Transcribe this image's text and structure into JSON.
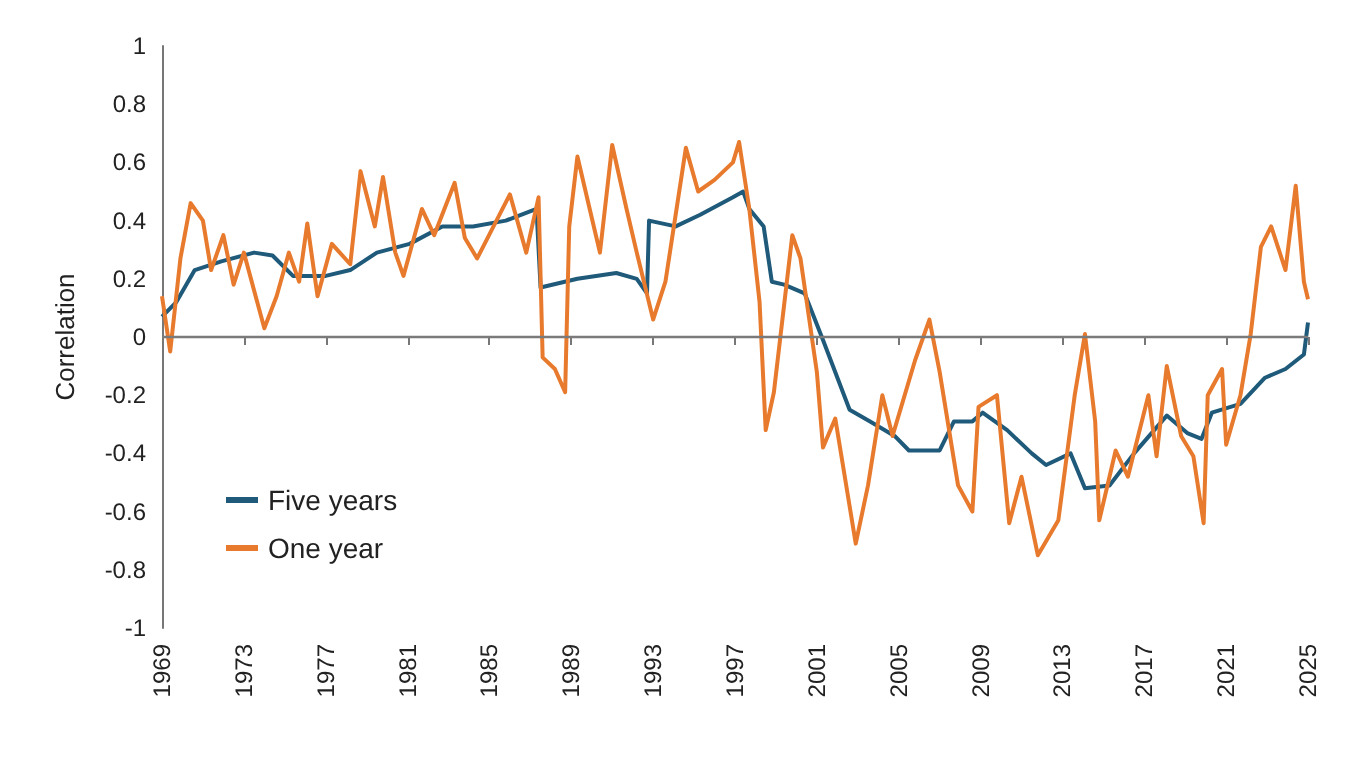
{
  "chart_data": {
    "type": "line",
    "ylabel": "Correlation",
    "xlim": [
      1969,
      2025
    ],
    "xticks": [
      1969,
      1973,
      1977,
      1981,
      1985,
      1989,
      1993,
      1997,
      2001,
      2005,
      2009,
      2013,
      2017,
      2021,
      2025
    ],
    "ylim": [
      -1,
      1
    ],
    "yticks": [
      -1,
      -0.8,
      -0.6,
      -0.4,
      -0.2,
      0,
      0.2,
      0.4,
      0.6,
      0.8,
      1
    ],
    "grid": false,
    "ref_lines": [
      {
        "axis": "y",
        "value": 0,
        "color": "#7a7a7a"
      }
    ],
    "legend": "bottom left",
    "marker": "none",
    "line_style": "solid",
    "series": [
      {
        "name": "Five years",
        "color": "#1f5a7a",
        "x": [
          1969,
          1969.7,
          1970.6,
          1971.9,
          1973.5,
          1974.4,
          1975.4,
          1977,
          1978.2,
          1979.5,
          1981.1,
          1982.7,
          1984.2,
          1985.8,
          1987.3,
          1987.5,
          1989.3,
          1991.2,
          1992.2,
          1992.7,
          1992.8,
          1994.1,
          1995.3,
          1996.9,
          1997.4,
          1997.7,
          1998.4,
          1998.8,
          1999.4,
          2000.4,
          2001.3,
          2002.6,
          2003.6,
          2004.8,
          2005.5,
          2007,
          2007.7,
          2008.6,
          2009.1,
          2010.3,
          2011.5,
          2012.2,
          2013.4,
          2014.1,
          2015.3,
          2016.5,
          2018.1,
          2019.1,
          2019.8,
          2020.3,
          2021.7,
          2022.9,
          2023.9,
          2024.8,
          2025
        ],
        "values": [
          0.07,
          0.12,
          0.23,
          0.26,
          0.29,
          0.28,
          0.21,
          0.21,
          0.23,
          0.29,
          0.32,
          0.38,
          0.38,
          0.4,
          0.44,
          0.17,
          0.2,
          0.22,
          0.2,
          0.15,
          0.4,
          0.38,
          0.42,
          0.48,
          0.5,
          0.44,
          0.38,
          0.19,
          0.18,
          0.15,
          -0.01,
          -0.25,
          -0.29,
          -0.34,
          -0.39,
          -0.39,
          -0.29,
          -0.29,
          -0.26,
          -0.32,
          -0.4,
          -0.44,
          -0.4,
          -0.52,
          -0.51,
          -0.4,
          -0.27,
          -0.33,
          -0.35,
          -0.26,
          -0.23,
          -0.14,
          -0.11,
          -0.06,
          0.05
        ]
      },
      {
        "name": "One year",
        "color": "#e87a2e",
        "x": [
          1969,
          1969.4,
          1969.9,
          1970.4,
          1971,
          1971.4,
          1972,
          1972.5,
          1973,
          1974,
          1974.6,
          1975.2,
          1975.7,
          1976.1,
          1976.6,
          1977.3,
          1978.2,
          1978.7,
          1979.4,
          1979.8,
          1980.4,
          1980.8,
          1981.7,
          1982.3,
          1983.3,
          1983.8,
          1984.4,
          1985.2,
          1986,
          1986.8,
          1987.4,
          1987.6,
          1988.2,
          1988.7,
          1988.9,
          1989.3,
          1989.9,
          1990.4,
          1991,
          1991.7,
          1992.2,
          1993,
          1993.6,
          1994.6,
          1995.2,
          1996,
          1996.9,
          1997.2,
          1997.7,
          1998.2,
          1998.5,
          1998.9,
          1999.8,
          2000.2,
          2001,
          2001.3,
          2001.9,
          2002.9,
          2003.5,
          2004.2,
          2004.7,
          2005.8,
          2006.5,
          2007,
          2007.9,
          2008.6,
          2008.9,
          2009.8,
          2010.4,
          2011,
          2011.8,
          2012.8,
          2013.6,
          2014.1,
          2014.6,
          2014.8,
          2015.6,
          2016.2,
          2017.2,
          2017.6,
          2018.1,
          2018.8,
          2019.4,
          2019.9,
          2020.1,
          2020.8,
          2021,
          2021.7,
          2022.2,
          2022.7,
          2023.2,
          2023.9,
          2024.4,
          2024.8,
          2025
        ],
        "values": [
          0.14,
          -0.05,
          0.27,
          0.46,
          0.4,
          0.23,
          0.35,
          0.18,
          0.29,
          0.03,
          0.14,
          0.29,
          0.19,
          0.39,
          0.14,
          0.32,
          0.25,
          0.57,
          0.38,
          0.55,
          0.29,
          0.21,
          0.44,
          0.35,
          0.53,
          0.34,
          0.27,
          0.38,
          0.49,
          0.29,
          0.48,
          -0.07,
          -0.11,
          -0.19,
          0.38,
          0.62,
          0.44,
          0.29,
          0.66,
          0.44,
          0.29,
          0.06,
          0.19,
          0.65,
          0.5,
          0.54,
          0.6,
          0.67,
          0.44,
          0.12,
          -0.32,
          -0.19,
          0.35,
          0.27,
          -0.12,
          -0.38,
          -0.28,
          -0.71,
          -0.51,
          -0.2,
          -0.34,
          -0.08,
          0.06,
          -0.12,
          -0.51,
          -0.6,
          -0.24,
          -0.2,
          -0.64,
          -0.48,
          -0.75,
          -0.63,
          -0.2,
          0.01,
          -0.29,
          -0.63,
          -0.39,
          -0.48,
          -0.2,
          -0.41,
          -0.1,
          -0.34,
          -0.41,
          -0.64,
          -0.2,
          -0.11,
          -0.37,
          -0.2,
          0.01,
          0.31,
          0.38,
          0.23,
          0.52,
          0.19,
          0.13
        ]
      }
    ]
  }
}
